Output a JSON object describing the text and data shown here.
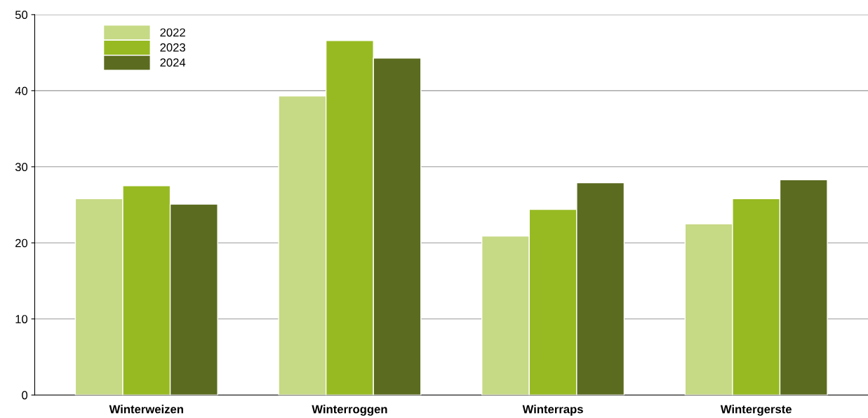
{
  "chart_data": {
    "type": "bar",
    "categories": [
      "Winterweizen",
      "Winterroggen",
      "Winterraps",
      "Wintergerste"
    ],
    "series": [
      {
        "name": "2022",
        "color": "#c6d985",
        "values": [
          25.8,
          39.3,
          20.9,
          22.5
        ]
      },
      {
        "name": "2023",
        "color": "#97ba22",
        "values": [
          27.5,
          46.6,
          24.4,
          25.8
        ]
      },
      {
        "name": "2024",
        "color": "#5b6b1f",
        "values": [
          25.1,
          44.3,
          27.9,
          28.3
        ]
      }
    ],
    "ylim": [
      0,
      50
    ],
    "yticks": [
      0,
      10,
      20,
      30,
      40,
      50
    ],
    "grid": "y",
    "legend": "top left"
  }
}
